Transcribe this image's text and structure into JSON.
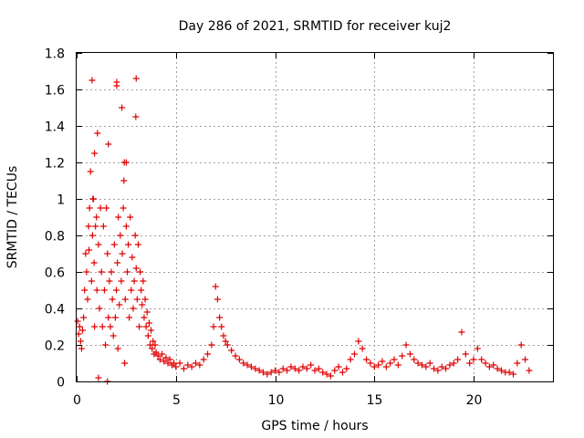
{
  "chart_data": {
    "type": "scatter",
    "title": "Day 286 of 2021, SRMTID for receiver kuj2",
    "xlabel": "GPS time / hours",
    "ylabel": "SRMTID / TECUs",
    "xlim": [
      0,
      24
    ],
    "ylim": [
      0,
      1.8
    ],
    "x_ticks": [
      0,
      5,
      10,
      15,
      20
    ],
    "x_tick_labels": [
      "0",
      "5",
      "10",
      "15",
      "20"
    ],
    "y_ticks": [
      0,
      0.2,
      0.4,
      0.6,
      0.8,
      1,
      1.2,
      1.4,
      1.6,
      1.8
    ],
    "y_tick_labels": [
      "0",
      "0.2",
      "0.4",
      "0.6",
      "0.8",
      "1",
      "1.2",
      "1.4",
      "1.6",
      "1.8"
    ],
    "grid": true,
    "marker": "+",
    "series": [
      {
        "name": "SRMTID",
        "color": "#e00000",
        "x": [
          0.05,
          0.1,
          0.15,
          0.2,
          0.25,
          0.3,
          0.35,
          0.4,
          0.45,
          0.5,
          0.55,
          0.6,
          0.62,
          0.65,
          0.7,
          0.75,
          0.78,
          0.8,
          0.85,
          0.88,
          0.9,
          0.95,
          1.0,
          1.02,
          1.05,
          1.1,
          1.15,
          1.2,
          1.25,
          1.3,
          1.35,
          1.4,
          1.45,
          1.5,
          1.55,
          1.6,
          1.65,
          1.7,
          1.75,
          1.8,
          1.85,
          1.9,
          1.95,
          2.0,
          2.02,
          2.05,
          2.1,
          2.15,
          2.2,
          2.25,
          2.28,
          2.3,
          2.35,
          2.4,
          2.45,
          2.5,
          2.55,
          2.6,
          2.65,
          2.7,
          2.75,
          2.8,
          2.85,
          2.9,
          2.95,
          3.0,
          3.05,
          3.1,
          3.15,
          3.2,
          3.25,
          3.3,
          3.35,
          3.4,
          3.45,
          3.5,
          3.55,
          3.6,
          3.65,
          3.7,
          3.75,
          3.8,
          3.85,
          3.9,
          3.95,
          4.0,
          4.1,
          4.2,
          4.3,
          4.4,
          4.5,
          4.6,
          4.7,
          4.8,
          4.9,
          5.0,
          5.2,
          5.4,
          5.6,
          5.8,
          6.0,
          6.2,
          6.4,
          6.6,
          6.8,
          6.9,
          7.0,
          7.1,
          7.2,
          7.3,
          7.4,
          7.5,
          7.6,
          7.8,
          8.0,
          8.2,
          8.4,
          8.6,
          8.8,
          9.0,
          9.2,
          9.4,
          9.6,
          9.8,
          10.0,
          10.2,
          10.4,
          10.6,
          10.8,
          11.0,
          11.2,
          11.4,
          11.6,
          11.8,
          12.0,
          12.2,
          12.4,
          12.6,
          12.8,
          13.0,
          13.2,
          13.4,
          13.6,
          13.8,
          14.0,
          14.2,
          14.4,
          14.6,
          14.8,
          15.0,
          15.2,
          15.4,
          15.6,
          15.8,
          16.0,
          16.2,
          16.4,
          16.6,
          16.8,
          17.0,
          17.2,
          17.4,
          17.6,
          17.8,
          18.0,
          18.2,
          18.4,
          18.6,
          18.8,
          19.0,
          19.2,
          19.4,
          19.6,
          19.8,
          20.0,
          20.2,
          20.4,
          20.6,
          20.8,
          21.0,
          21.2,
          21.4,
          21.6,
          21.8,
          22.0,
          22.2,
          22.4,
          22.6,
          22.8,
          0.82,
          0.9,
          2.02,
          2.08,
          2.42,
          2.98,
          3.0,
          2.5,
          2.38,
          1.6,
          1.1,
          1.55
        ],
        "y": [
          0.33,
          0.26,
          0.3,
          0.22,
          0.18,
          0.28,
          0.35,
          0.5,
          0.7,
          0.6,
          0.45,
          0.85,
          0.72,
          0.95,
          1.15,
          0.55,
          1.65,
          0.8,
          1.0,
          0.65,
          1.25,
          0.85,
          0.9,
          0.5,
          1.36,
          0.75,
          0.4,
          0.95,
          0.6,
          0.3,
          0.85,
          0.5,
          0.2,
          0.95,
          0.7,
          0.35,
          0.55,
          0.3,
          0.6,
          0.45,
          0.25,
          0.75,
          0.35,
          0.5,
          1.64,
          0.65,
          0.9,
          0.42,
          0.8,
          0.55,
          1.5,
          0.7,
          0.95,
          1.2,
          0.45,
          0.85,
          0.6,
          0.75,
          0.35,
          0.9,
          0.5,
          0.68,
          0.4,
          0.55,
          0.8,
          0.62,
          0.45,
          0.75,
          0.3,
          0.6,
          0.5,
          0.42,
          0.55,
          0.35,
          0.45,
          0.3,
          0.38,
          0.25,
          0.32,
          0.2,
          0.28,
          0.18,
          0.22,
          0.15,
          0.2,
          0.16,
          0.14,
          0.12,
          0.15,
          0.11,
          0.13,
          0.1,
          0.12,
          0.09,
          0.1,
          0.08,
          0.1,
          0.07,
          0.09,
          0.08,
          0.1,
          0.09,
          0.12,
          0.15,
          0.2,
          0.3,
          0.52,
          0.45,
          0.35,
          0.3,
          0.25,
          0.22,
          0.2,
          0.17,
          0.14,
          0.12,
          0.1,
          0.09,
          0.08,
          0.07,
          0.06,
          0.05,
          0.04,
          0.05,
          0.06,
          0.05,
          0.07,
          0.06,
          0.08,
          0.07,
          0.06,
          0.08,
          0.07,
          0.09,
          0.06,
          0.07,
          0.05,
          0.04,
          0.03,
          0.06,
          0.08,
          0.05,
          0.07,
          0.12,
          0.15,
          0.22,
          0.18,
          0.12,
          0.1,
          0.08,
          0.09,
          0.11,
          0.08,
          0.1,
          0.12,
          0.09,
          0.14,
          0.2,
          0.15,
          0.12,
          0.1,
          0.09,
          0.08,
          0.1,
          0.07,
          0.06,
          0.08,
          0.07,
          0.09,
          0.1,
          0.12,
          0.27,
          0.15,
          0.1,
          0.12,
          0.18,
          0.12,
          0.1,
          0.08,
          0.09,
          0.07,
          0.06,
          0.05,
          0.05,
          0.04,
          0.1,
          0.2,
          0.12,
          0.06,
          1.0,
          0.3,
          1.62,
          0.18,
          0.1,
          1.45,
          1.66,
          1.2,
          1.1,
          1.3,
          0.02,
          0.0
        ]
      }
    ]
  }
}
